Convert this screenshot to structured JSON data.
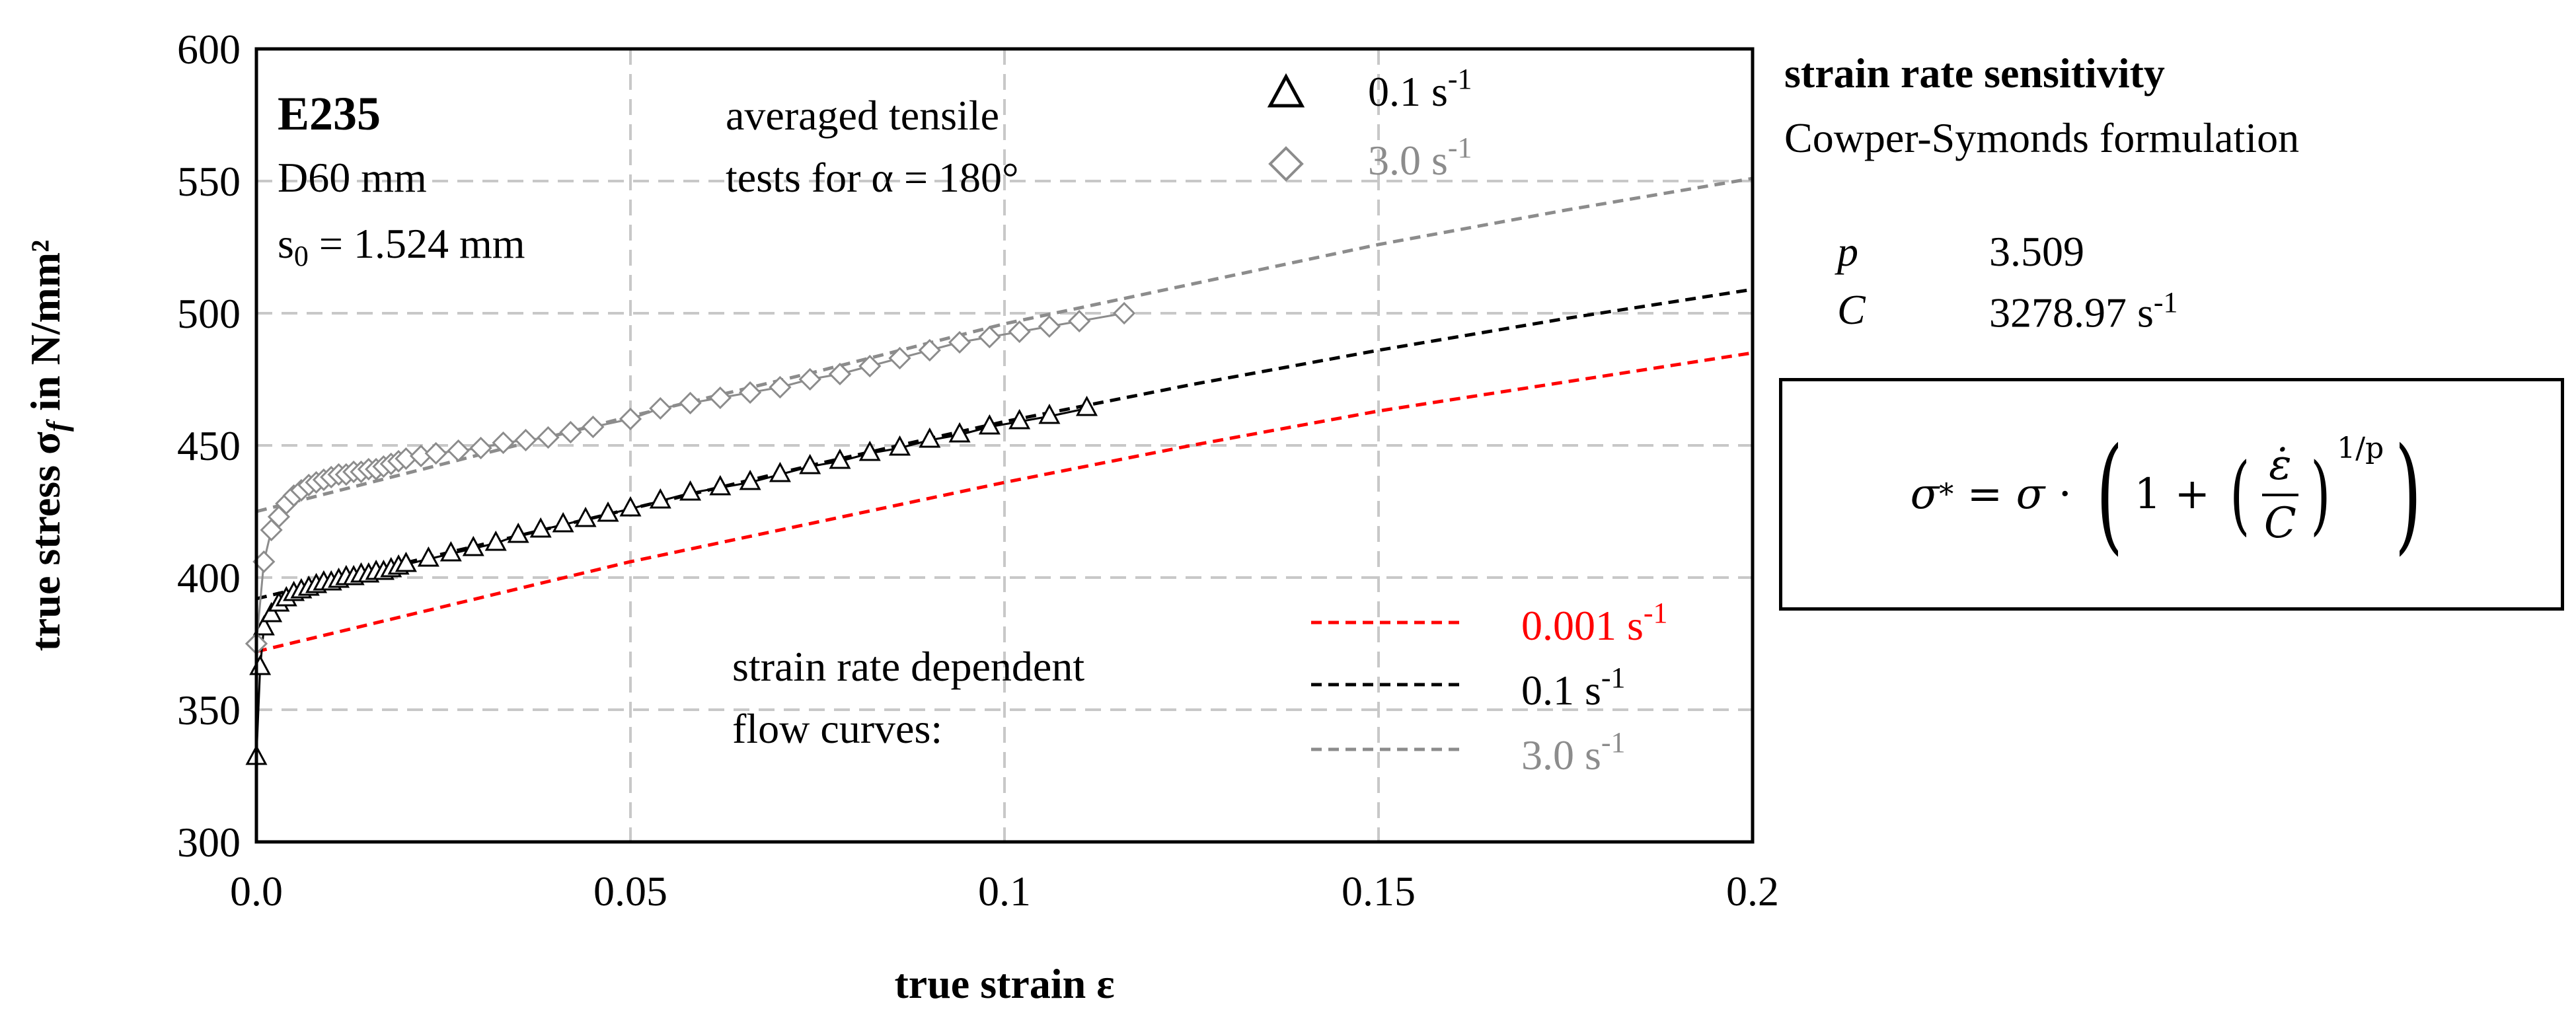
{
  "chart_data": {
    "type": "line",
    "title": "",
    "xlabel": "true strain ε",
    "ylabel": "true stress σf in N/mm²",
    "ylabel_main": "true stress σ",
    "ylabel_sub": "f",
    "ylabel_tail": " in N/mm²",
    "xlim": [
      0,
      0.2
    ],
    "ylim": [
      300,
      600
    ],
    "grid": true,
    "x_ticks": [
      "0.0",
      "0.05",
      "0.1",
      "0.15",
      "0.2"
    ],
    "x_tick_values": [
      0,
      0.05,
      0.1,
      0.15,
      0.2
    ],
    "y_ticks": [
      "300",
      "350",
      "400",
      "450",
      "500",
      "550",
      "600"
    ],
    "y_tick_values": [
      300,
      350,
      400,
      450,
      500,
      550,
      600
    ],
    "annotations": {
      "material": "E235",
      "diameter": "D60 mm",
      "thickness": "s",
      "thickness_sub": "0",
      "thickness_val": " = 1.524 mm",
      "tests_line1": "averaged tensile",
      "tests_line2": "tests for α = 180°",
      "curves_line1": "strain rate dependent",
      "curves_line2": "flow curves:"
    },
    "series": [
      {
        "name": "0.001 s⁻¹",
        "label": "0.001 s",
        "sup": "-1",
        "kind": "dashed",
        "color": "#ff0000",
        "x": [
          0,
          0.025,
          0.05,
          0.075,
          0.1,
          0.125,
          0.15,
          0.175,
          0.2
        ],
        "y": [
          372,
          389,
          406,
          421,
          436,
          450,
          463,
          474,
          485
        ]
      },
      {
        "name": "0.1 s⁻¹",
        "label": "0.1 s",
        "sup": "-1",
        "kind": "dashed",
        "color": "#000000",
        "x": [
          0,
          0.025,
          0.05,
          0.075,
          0.1,
          0.125,
          0.15,
          0.175,
          0.2
        ],
        "y": [
          392,
          409,
          426,
          443,
          459,
          473,
          486,
          498,
          509
        ]
      },
      {
        "name": "3.0 s⁻¹",
        "label": "3.0 s",
        "sup": "-1",
        "kind": "dashed",
        "color": "#8c8c8c",
        "x": [
          0,
          0.025,
          0.05,
          0.075,
          0.1,
          0.125,
          0.15,
          0.175,
          0.2
        ],
        "y": [
          425,
          443,
          461,
          478,
          496,
          511,
          526,
          539,
          551
        ]
      },
      {
        "name": "0.1 s⁻¹ (test)",
        "label": "0.1 s",
        "sup": "-1",
        "kind": "triangle",
        "color": "#000000",
        "x": [
          0,
          0.0005,
          0.001,
          0.002,
          0.003,
          0.004,
          0.005,
          0.006,
          0.007,
          0.008,
          0.009,
          0.01,
          0.011,
          0.012,
          0.013,
          0.014,
          0.015,
          0.016,
          0.017,
          0.018,
          0.019,
          0.02,
          0.023,
          0.026,
          0.029,
          0.032,
          0.035,
          0.038,
          0.041,
          0.044,
          0.047,
          0.05,
          0.054,
          0.058,
          0.062,
          0.066,
          0.07,
          0.074,
          0.078,
          0.082,
          0.086,
          0.09,
          0.094,
          0.098,
          0.102,
          0.106,
          0.111
        ],
        "y": [
          332,
          366,
          381,
          386,
          390,
          392,
          394,
          395,
          396,
          397,
          398,
          398,
          399,
          400,
          400,
          401,
          401,
          402,
          402,
          403,
          404,
          405,
          407,
          409,
          411,
          413,
          416,
          418,
          420,
          422,
          424,
          426,
          429,
          432,
          434,
          436,
          439,
          442,
          444,
          447,
          449,
          452,
          454,
          457,
          459,
          461,
          464
        ]
      },
      {
        "name": "3.0 s⁻¹ (test)",
        "label": "3.0 s",
        "sup": "-1",
        "kind": "diamond",
        "color": "#8c8c8c",
        "x": [
          0,
          0.001,
          0.002,
          0.003,
          0.004,
          0.005,
          0.006,
          0.007,
          0.008,
          0.009,
          0.01,
          0.011,
          0.012,
          0.013,
          0.014,
          0.015,
          0.016,
          0.017,
          0.018,
          0.019,
          0.02,
          0.022,
          0.024,
          0.027,
          0.03,
          0.033,
          0.036,
          0.039,
          0.042,
          0.045,
          0.05,
          0.054,
          0.058,
          0.062,
          0.066,
          0.07,
          0.074,
          0.078,
          0.082,
          0.086,
          0.09,
          0.094,
          0.098,
          0.102,
          0.106,
          0.11,
          0.116
        ],
        "y": [
          375,
          406,
          418,
          423,
          428,
          431,
          433,
          435,
          436,
          437,
          438,
          439,
          439,
          440,
          440,
          441,
          441,
          442,
          443,
          444,
          445,
          446,
          447,
          448,
          449,
          451,
          452,
          453,
          455,
          457,
          460,
          464,
          466,
          468,
          470,
          472,
          475,
          477,
          480,
          483,
          486,
          489,
          491,
          493,
          495,
          497,
          500
        ]
      }
    ]
  },
  "side": {
    "title": "strain rate sensitivity",
    "subtitle": "Cowper-Symonds formulation",
    "p_symbol": "p",
    "p_value": "3.509",
    "c_symbol": "C",
    "c_value": "3278.97 s",
    "c_sup": "-1",
    "formula": {
      "lhs": "σ",
      "star": "*",
      "eq": " = ",
      "sigma": "σ",
      "dot": " · ",
      "one": "1 + ",
      "num": "ε̇",
      "den": "C",
      "exp": "1/p"
    }
  }
}
